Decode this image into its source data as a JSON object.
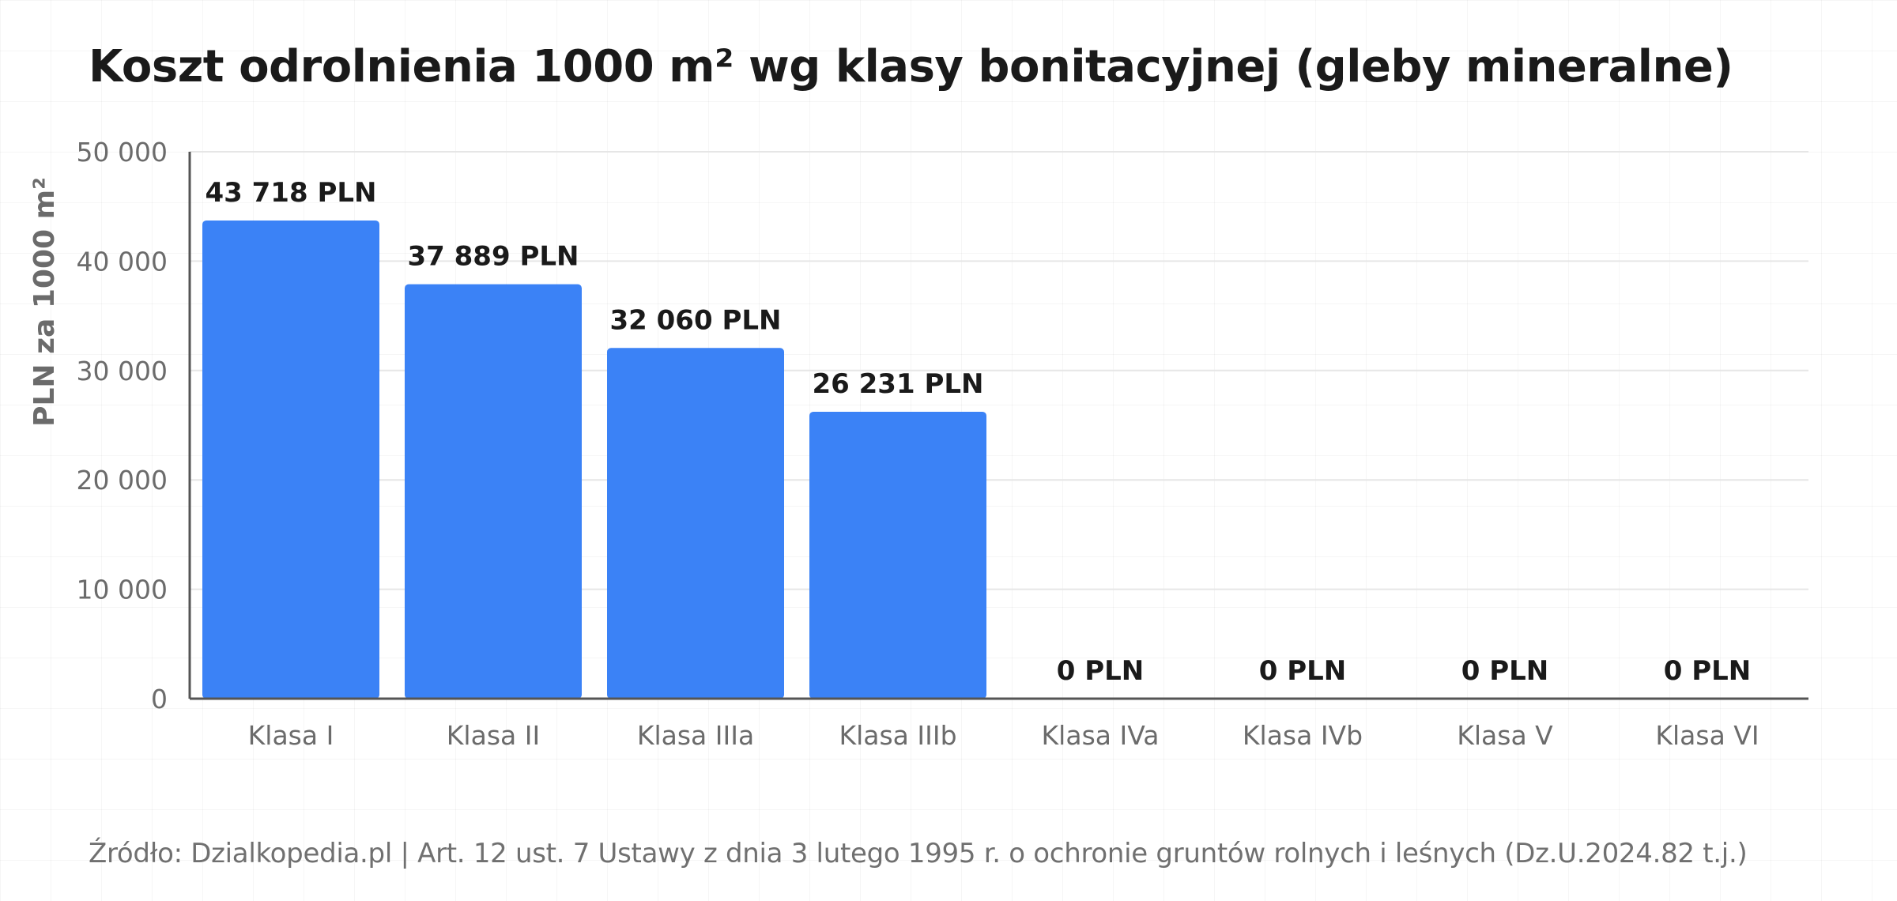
{
  "chart_data": {
    "type": "bar",
    "title": "Koszt odrolnienia 1000 m² wg klasy bonitacyjnej (gleby mineralne)",
    "ylabel": "PLN za 1000 m²",
    "xlabel": "",
    "categories": [
      "Klasa I",
      "Klasa II",
      "Klasa IIIa",
      "Klasa IIIb",
      "Klasa IVa",
      "Klasa IVb",
      "Klasa V",
      "Klasa VI"
    ],
    "values": [
      43718,
      37889,
      32060,
      26231,
      0,
      0,
      0,
      0
    ],
    "value_labels": [
      "43 718 PLN",
      "37 889 PLN",
      "32 060 PLN",
      "26 231 PLN",
      "0 PLN",
      "0 PLN",
      "0 PLN",
      "0 PLN"
    ],
    "ylim": [
      0,
      50000
    ],
    "yticks": [
      0,
      10000,
      20000,
      30000,
      40000,
      50000
    ],
    "ytick_labels": [
      "0",
      "10 000",
      "20 000",
      "30 000",
      "40 000",
      "50 000"
    ],
    "grid": true,
    "legend": "none",
    "colors": {
      "bar": "#3B82F6",
      "axis": "#555555",
      "grid": "#e6e6e6",
      "tick_label": "#6b6b6b",
      "value_label": "#1a1a1a"
    }
  },
  "footer": {
    "source": "Źródło: Dzialkopedia.pl | Art. 12 ust. 7 Ustawy z dnia 3 lutego 1995 r. o ochronie gruntów rolnych i leśnych (Dz.U.2024.82 t.j.)"
  }
}
